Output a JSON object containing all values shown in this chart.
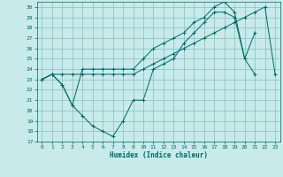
{
  "xlabel": "Humidex (Indice chaleur)",
  "bg_color": "#c8eaea",
  "line_color": "#006666",
  "grid_color": "#80c0c0",
  "xlim": [
    -0.5,
    23.5
  ],
  "ylim": [
    17,
    30.5
  ],
  "yticks": [
    17,
    18,
    19,
    20,
    21,
    22,
    23,
    24,
    25,
    26,
    27,
    28,
    29,
    30
  ],
  "xticks": [
    0,
    1,
    2,
    3,
    4,
    5,
    6,
    7,
    8,
    9,
    10,
    11,
    12,
    13,
    14,
    15,
    16,
    17,
    18,
    19,
    20,
    21,
    22,
    23
  ],
  "line1_x": [
    0,
    1,
    2,
    3,
    4,
    5,
    6,
    7,
    8,
    9,
    10,
    11,
    12,
    13,
    14,
    15,
    16,
    17,
    18,
    19,
    20,
    21
  ],
  "line1_y": [
    23,
    23.5,
    22.5,
    20.5,
    19.5,
    18.5,
    18,
    17.5,
    19,
    21,
    21,
    24,
    24.5,
    25,
    26.5,
    27.5,
    28.5,
    29.5,
    29.5,
    29,
    25,
    23.5
  ],
  "line2_x": [
    0,
    1,
    2,
    3,
    4,
    5,
    6,
    7,
    8,
    9,
    10,
    11,
    12,
    13,
    14,
    15,
    16,
    17,
    18,
    19,
    20,
    21,
    22,
    23
  ],
  "line2_y": [
    23,
    23.5,
    23.5,
    23.5,
    23.5,
    23.5,
    23.5,
    23.5,
    23.5,
    23.5,
    24,
    24.5,
    25,
    25.5,
    26,
    26.5,
    27,
    27.5,
    28,
    28.5,
    29,
    29.5,
    30,
    23.5
  ],
  "line3_x": [
    0,
    1,
    2,
    3,
    4,
    5,
    6,
    7,
    8,
    9,
    10,
    11,
    12,
    13,
    14,
    15,
    16,
    17,
    18,
    19,
    20,
    21
  ],
  "line3_y": [
    23,
    23.5,
    22.5,
    20.5,
    24,
    24,
    24,
    24,
    24,
    24,
    25,
    26,
    26.5,
    27,
    27.5,
    28.5,
    29,
    30,
    30.5,
    29.5,
    25,
    27.5
  ]
}
